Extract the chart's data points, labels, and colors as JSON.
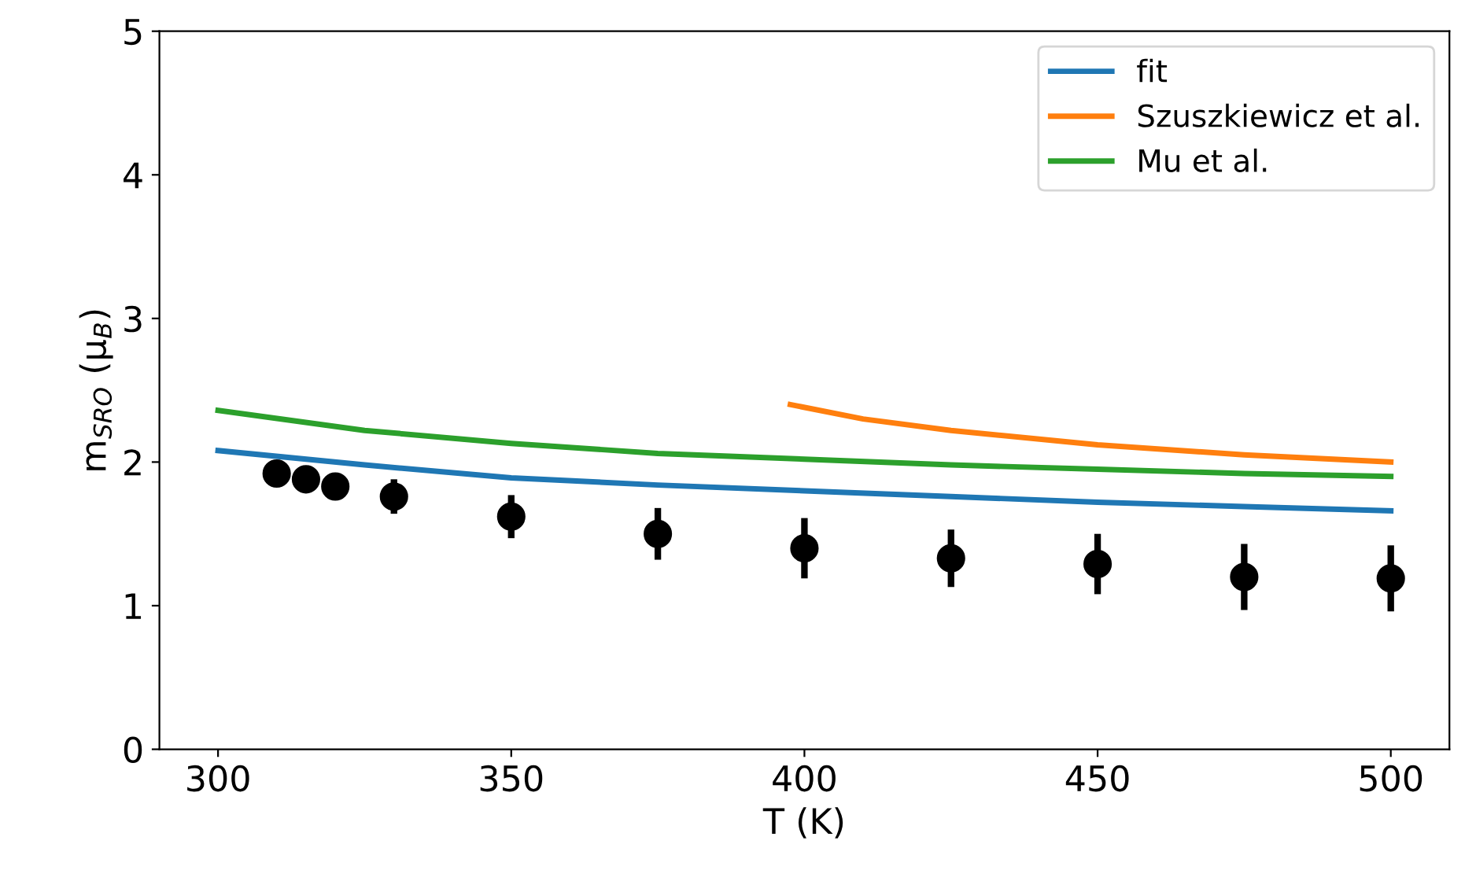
{
  "chart_data": {
    "type": "line",
    "xlabel": "T (K)",
    "ylabel": "m$_{SRO}$ (μ$_{B}$)",
    "xlim": [
      290,
      510
    ],
    "xticks": [
      300,
      350,
      400,
      450,
      500
    ],
    "ylim": [
      0,
      5
    ],
    "yticks": [
      0,
      1,
      2,
      3,
      4,
      5
    ],
    "grid": false,
    "legend": "top right",
    "line_style": "solid",
    "series": [
      {
        "name": "fit",
        "color": "#1f77b4",
        "x": [
          300,
          325,
          350,
          375,
          400,
          425,
          450,
          475,
          500
        ],
        "values": [
          2.08,
          1.98,
          1.89,
          1.84,
          1.8,
          1.76,
          1.72,
          1.69,
          1.66
        ]
      },
      {
        "name": "Szuszkiewicz et al.",
        "color": "#ff7f0e",
        "x": [
          397.6,
          410,
          425,
          450,
          475,
          500
        ],
        "values": [
          2.4,
          2.3,
          2.22,
          2.12,
          2.05,
          2.0
        ]
      },
      {
        "name": "Mu et al.",
        "color": "#2ca02c",
        "x": [
          300,
          325,
          350,
          375,
          400,
          425,
          450,
          475,
          500
        ],
        "values": [
          2.36,
          2.22,
          2.13,
          2.06,
          2.02,
          1.98,
          1.95,
          1.92,
          1.9
        ]
      },
      {
        "type": "scatter",
        "color": "#000000",
        "marker": "circle",
        "x": [
          310,
          315,
          320,
          330,
          350,
          375,
          400,
          425,
          450,
          475,
          500
        ],
        "values": [
          1.92,
          1.88,
          1.83,
          1.76,
          1.62,
          1.5,
          1.4,
          1.33,
          1.29,
          1.2,
          1.19
        ],
        "errors": [
          null,
          null,
          null,
          0.12,
          0.15,
          0.18,
          0.21,
          0.2,
          0.21,
          0.23,
          0.23
        ]
      }
    ]
  }
}
